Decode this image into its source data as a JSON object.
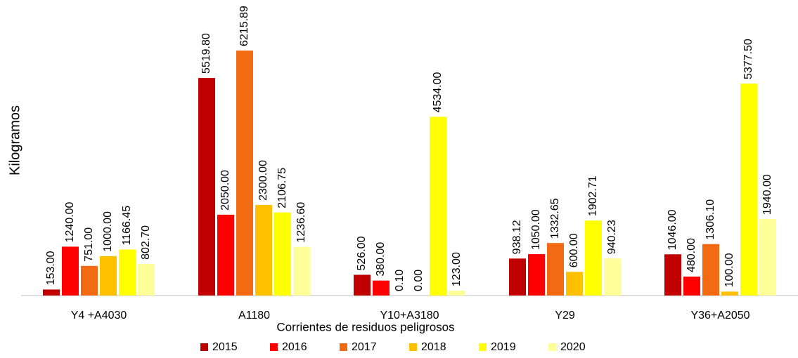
{
  "chart_data": {
    "type": "bar",
    "x_label": "Corrientes de residuos peligrosos",
    "y_label": "Kilogramos",
    "categories": [
      "Y4 +A4030",
      "A1180",
      "Y10+A3180",
      "Y29",
      "Y36+A2050"
    ],
    "series": [
      {
        "name": "2015",
        "color": "#c00000",
        "values": [
          153,
          5519.8,
          526,
          938.12,
          1046
        ],
        "value_labels": [
          "153.00",
          "5519.80",
          "526.00",
          "938.12",
          "1046.00"
        ]
      },
      {
        "name": "2016",
        "color": "#ff0000",
        "values": [
          1240,
          2050,
          380,
          1050,
          480
        ],
        "value_labels": [
          "1240.00",
          "2050.00",
          "380.00",
          "1050.00",
          "480.00"
        ]
      },
      {
        "name": "2017",
        "color": "#f26b12",
        "values": [
          751,
          6215.89,
          0.1,
          1332.65,
          1306.1
        ],
        "value_labels": [
          "751.00",
          "6215.89",
          "0.10",
          "1332.65",
          "1306.10"
        ]
      },
      {
        "name": "2018",
        "color": "#ffc000",
        "values": [
          1000,
          2300,
          0,
          600,
          100
        ],
        "value_labels": [
          "1000.00",
          "2300.00",
          "0.00",
          "600.00",
          "100.00"
        ]
      },
      {
        "name": "2019",
        "color": "#ffff00",
        "values": [
          1166.45,
          2106.75,
          4534,
          1902.71,
          5377.5
        ],
        "value_labels": [
          "1166.45",
          "2106.75",
          "4534.00",
          "1902.71",
          "5377.50"
        ]
      },
      {
        "name": "2020",
        "color": "#ffff99",
        "values": [
          802.7,
          1236.6,
          123,
          940.23,
          1940
        ],
        "value_labels": [
          "802.70",
          "1236.60",
          "123.00",
          "940.23",
          "1940.00"
        ]
      }
    ],
    "legend": "bottom"
  }
}
